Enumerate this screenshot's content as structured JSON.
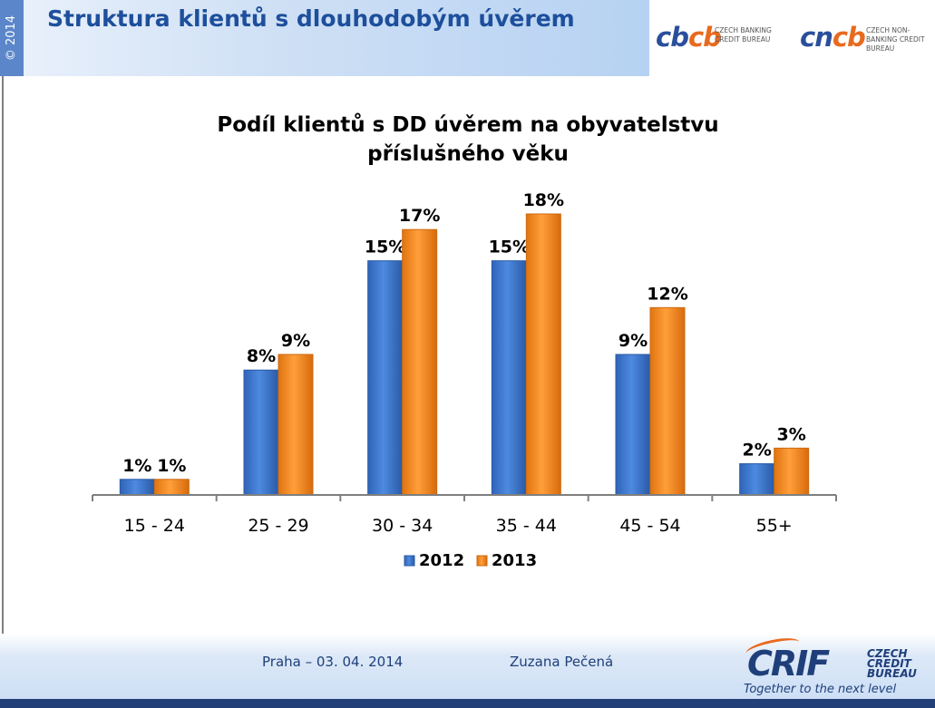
{
  "header": {
    "copyright": "© 2014",
    "title": "Struktura klientů s dlouhodobým úvěrem"
  },
  "logos": {
    "cbcb": {
      "mark_a": "cb",
      "mark_b": "cb",
      "subtitle": "CZECH BANKING CREDIT BUREAU"
    },
    "cncb": {
      "mark_a": "cn",
      "mark_b": "cb",
      "subtitle": "CZECH NON-BANKING CREDIT BUREAU"
    },
    "crif": {
      "word": "CRIF",
      "subtitle": "CZECH CREDIT BUREAU",
      "tagline": "Together to the next level"
    }
  },
  "colors": {
    "series_2012": "#3f7bd2",
    "series_2013": "#f48c1e",
    "title_blue": "#1d4f9c"
  },
  "chart_data": {
    "type": "bar",
    "title_lines": [
      "Podíl klientů s DD úvěrem na obyvatelstvu",
      "příslušného věku"
    ],
    "categories": [
      "15 - 24",
      "25 - 29",
      "30 - 34",
      "35 - 44",
      "45 - 54",
      "55+"
    ],
    "series": [
      {
        "name": "2012",
        "values": [
          1,
          8,
          15,
          15,
          9,
          2
        ],
        "labels": [
          "1%",
          "8%",
          "15%",
          "15%",
          "9%",
          "2%"
        ]
      },
      {
        "name": "2013",
        "values": [
          1,
          9,
          17,
          18,
          12,
          3
        ],
        "labels": [
          "1%",
          "9%",
          "17%",
          "18%",
          "12%",
          "3%"
        ]
      }
    ],
    "ylim": [
      0,
      18
    ],
    "xlabel": "",
    "ylabel": "",
    "legend": "bottom",
    "grid": false
  },
  "footer": {
    "date": "Praha – 03. 04. 2014",
    "author": "Zuzana Pečená"
  }
}
